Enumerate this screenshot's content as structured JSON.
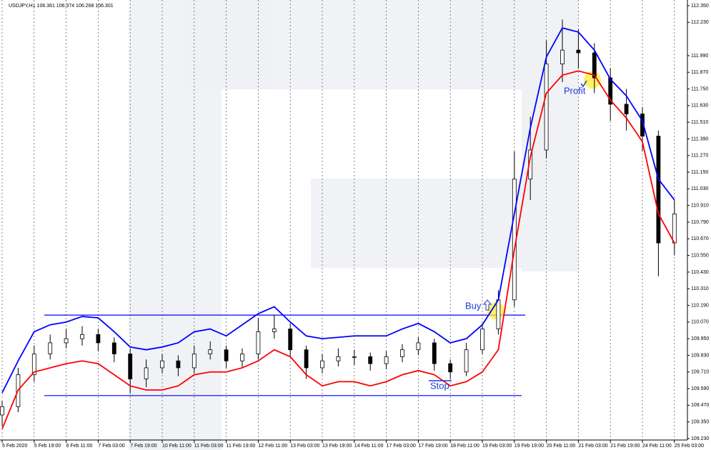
{
  "chart_data": {
    "type": "candlestick",
    "title": "USDJPY,H1  106.361 106.374 106.268 106.301",
    "x": [
      0,
      8,
      16,
      24,
      32,
      40,
      48,
      56,
      64,
      72,
      80,
      88,
      96,
      104,
      112,
      120,
      128,
      136,
      144,
      152,
      160,
      168,
      176,
      184,
      192,
      200,
      208,
      216,
      224,
      232,
      240,
      248,
      256,
      264,
      272,
      280,
      288,
      296,
      304,
      312,
      320,
      328,
      336
    ],
    "open": [
      109.4,
      109.46,
      109.69,
      109.84,
      109.92,
      109.95,
      109.98,
      109.92,
      109.84,
      109.66,
      109.74,
      109.79,
      109.74,
      109.84,
      109.87,
      109.79,
      109.84,
      110.0,
      110.02,
      109.87,
      109.74,
      109.79,
      109.82,
      109.82,
      109.77,
      109.82,
      109.87,
      109.92,
      109.77,
      109.71,
      109.87,
      110.02,
      110.23,
      111.1,
      111.31,
      111.93,
      112.03,
      112.01,
      111.83,
      111.64,
      111.57,
      111.41,
      110.64
    ],
    "high": [
      109.5,
      109.74,
      109.9,
      109.98,
      110.02,
      110.04,
      110.02,
      109.96,
      109.88,
      109.8,
      109.84,
      109.83,
      109.9,
      109.93,
      109.9,
      109.88,
      110.1,
      110.12,
      110.06,
      109.9,
      109.84,
      109.88,
      109.87,
      109.85,
      109.86,
      109.91,
      109.96,
      109.95,
      109.8,
      109.92,
      110.06,
      110.3,
      111.3,
      111.55,
      112.1,
      112.25,
      112.18,
      112.08,
      111.9,
      111.75,
      111.62,
      111.45,
      110.95
    ],
    "low": [
      109.32,
      109.42,
      109.64,
      109.8,
      109.88,
      109.9,
      109.86,
      109.78,
      109.56,
      109.6,
      109.7,
      109.68,
      109.7,
      109.8,
      109.74,
      109.74,
      109.8,
      109.95,
      109.82,
      109.66,
      109.7,
      109.75,
      109.76,
      109.72,
      109.73,
      109.78,
      109.83,
      109.72,
      109.66,
      109.68,
      109.84,
      109.98,
      110.18,
      110.95,
      111.25,
      111.8,
      111.9,
      111.72,
      111.52,
      111.45,
      111.3,
      110.4,
      110.55
    ],
    "close": [
      109.46,
      109.69,
      109.84,
      109.92,
      109.95,
      109.98,
      109.92,
      109.84,
      109.66,
      109.74,
      109.79,
      109.74,
      109.84,
      109.87,
      109.79,
      109.84,
      110.0,
      110.02,
      109.87,
      109.74,
      109.79,
      109.82,
      109.82,
      109.77,
      109.82,
      109.87,
      109.92,
      109.77,
      109.71,
      109.87,
      110.02,
      110.23,
      111.1,
      111.31,
      111.93,
      112.03,
      112.01,
      111.83,
      111.64,
      111.57,
      111.41,
      110.64,
      110.85
    ],
    "series": [
      {
        "color": "#0000ff",
        "values": [
          109.56,
          109.79,
          110.0,
          110.05,
          110.07,
          110.11,
          110.1,
          110.0,
          109.89,
          109.87,
          109.89,
          109.92,
          110.0,
          110.02,
          109.97,
          110.05,
          110.13,
          110.18,
          110.07,
          109.97,
          109.95,
          109.96,
          109.97,
          109.97,
          109.97,
          110.02,
          110.06,
          110.0,
          109.92,
          109.95,
          110.05,
          110.23,
          110.85,
          111.47,
          111.98,
          112.19,
          112.16,
          112.03,
          111.82,
          111.7,
          111.52,
          111.1,
          110.95
        ]
      },
      {
        "color": "#ff0000",
        "values": [
          109.3,
          109.58,
          109.71,
          109.74,
          109.77,
          109.79,
          109.77,
          109.69,
          109.61,
          109.58,
          109.58,
          109.61,
          109.69,
          109.71,
          109.71,
          109.74,
          109.79,
          109.87,
          109.82,
          109.69,
          109.61,
          109.64,
          109.64,
          109.61,
          109.64,
          109.69,
          109.72,
          109.69,
          109.61,
          109.64,
          109.71,
          109.87,
          110.59,
          111.26,
          111.72,
          111.85,
          111.88,
          111.85,
          111.67,
          111.54,
          111.37,
          110.85,
          110.64
        ]
      }
    ],
    "hlines": [
      {
        "value": 110.12,
        "color": "#0000ff"
      },
      {
        "value": 109.54,
        "color": "#0000ff"
      }
    ],
    "annotations": [
      "Buy",
      "Stop",
      "Profit"
    ],
    "xlim": [
      -1,
      342
    ],
    "ylim": [
      109.23,
      112.35
    ],
    "xticks": [
      {
        "value": 0,
        "label": "5 Feb 2020"
      },
      {
        "value": 16,
        "label": "5 Feb 19:00"
      },
      {
        "value": 32,
        "label": "6 Feb 11:00"
      },
      {
        "value": 48,
        "label": "7 Feb 03:00"
      },
      {
        "value": 64,
        "label": "7 Feb 19:00"
      },
      {
        "value": 80,
        "label": "10 Feb 11:00"
      },
      {
        "value": 96,
        "label": "11 Feb 03:00"
      },
      {
        "value": 112,
        "label": "11 Feb 19:00"
      },
      {
        "value": 128,
        "label": "12 Feb 11:00"
      },
      {
        "value": 144,
        "label": "13 Feb 03:00"
      },
      {
        "value": 160,
        "label": "13 Feb 19:00"
      },
      {
        "value": 176,
        "label": "14 Feb 11:00"
      },
      {
        "value": 192,
        "label": "17 Feb 03:00"
      },
      {
        "value": 208,
        "label": "17 Feb 19:00"
      },
      {
        "value": 224,
        "label": "18 Feb 11:00"
      },
      {
        "value": 240,
        "label": "19 Feb 03:00"
      },
      {
        "value": 256,
        "label": "19 Feb 19:00"
      },
      {
        "value": 272,
        "label": "20 Feb 11:00"
      },
      {
        "value": 288,
        "label": "21 Feb 03:00"
      },
      {
        "value": 304,
        "label": "21 Feb 19:00"
      },
      {
        "value": 320,
        "label": "24 Feb 11:00"
      },
      {
        "value": 336,
        "label": "25 Feb 03:00"
      }
    ],
    "yticks": [
      {
        "value": 112.35,
        "label": "112.350"
      },
      {
        "value": 112.23,
        "label": "112.230"
      },
      {
        "value": 111.99,
        "label": "111.990"
      },
      {
        "value": 111.87,
        "label": "111.870"
      },
      {
        "value": 111.75,
        "label": "111.750"
      },
      {
        "value": 111.63,
        "label": "111.630"
      },
      {
        "value": 111.51,
        "label": "111.510"
      },
      {
        "value": 111.39,
        "label": "111.390"
      },
      {
        "value": 111.27,
        "label": "111.270"
      },
      {
        "value": 111.15,
        "label": "111.150"
      },
      {
        "value": 111.03,
        "label": "111.030"
      },
      {
        "value": 110.91,
        "label": "110.910"
      },
      {
        "value": 110.79,
        "label": "110.790"
      },
      {
        "value": 110.67,
        "label": "110.670"
      },
      {
        "value": 110.55,
        "label": "110.550"
      },
      {
        "value": 110.43,
        "label": "110.430"
      },
      {
        "value": 110.31,
        "label": "110.310"
      },
      {
        "value": 110.19,
        "label": "110.190"
      },
      {
        "value": 110.07,
        "label": "110.070"
      },
      {
        "value": 109.95,
        "label": "109.950"
      },
      {
        "value": 109.83,
        "label": "109.830"
      },
      {
        "value": 109.71,
        "label": "109.710"
      },
      {
        "value": 109.59,
        "label": "109.590"
      },
      {
        "value": 109.47,
        "label": "109.470"
      },
      {
        "value": 109.35,
        "label": "109.350"
      },
      {
        "value": 109.23,
        "label": "109.230"
      }
    ],
    "grid": true
  }
}
